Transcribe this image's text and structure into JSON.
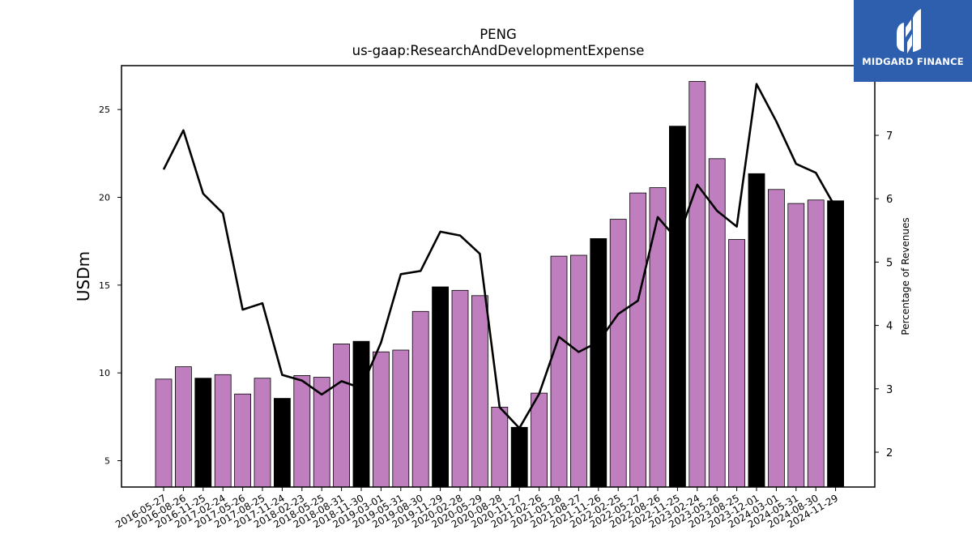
{
  "chart_data": {
    "type": "bar",
    "title": "PENG",
    "subtitle": "us-gaap:ResearchAndDevelopmentExpense",
    "ylabel": "USDm",
    "y2label": "Percentage of Revenues",
    "ylim": [
      3.5,
      27.5
    ],
    "y2lim": [
      1.45,
      8.1
    ],
    "yticks": [
      5,
      10,
      15,
      20,
      25
    ],
    "y2ticks": [
      2,
      3,
      4,
      5,
      6,
      7
    ],
    "categories": [
      "2016-05-27",
      "2016-08-26",
      "2016-11-25",
      "2017-02-24",
      "2017-05-26",
      "2017-08-25",
      "2017-11-24",
      "2018-02-23",
      "2018-05-25",
      "2018-08-31",
      "2018-11-30",
      "2019-03-01",
      "2019-05-31",
      "2019-08-30",
      "2019-11-29",
      "2020-02-28",
      "2020-05-29",
      "2020-08-28",
      "2020-11-27",
      "2021-02-26",
      "2021-05-28",
      "2021-08-27",
      "2021-11-26",
      "2022-02-25",
      "2022-05-27",
      "2022-08-26",
      "2022-11-25",
      "2023-02-24",
      "2023-05-26",
      "2023-08-25",
      "2023-12-01",
      "2024-03-01",
      "2024-05-31",
      "2024-08-30",
      "2024-11-29"
    ],
    "series": [
      {
        "type": "bar",
        "values": [
          9.65,
          10.35,
          9.7,
          9.9,
          8.8,
          9.7,
          8.55,
          9.85,
          9.75,
          11.65,
          11.8,
          11.2,
          11.3,
          13.5,
          14.9,
          14.7,
          14.4,
          8.05,
          6.9,
          8.85,
          16.65,
          16.7,
          17.65,
          18.75,
          20.25,
          20.55,
          24.05,
          26.6,
          22.2,
          17.6,
          21.35,
          20.45,
          19.65,
          19.85,
          19.8
        ],
        "highlight": [
          false,
          false,
          true,
          false,
          false,
          false,
          true,
          false,
          false,
          false,
          true,
          false,
          false,
          false,
          true,
          false,
          false,
          false,
          true,
          false,
          false,
          false,
          true,
          false,
          false,
          false,
          true,
          false,
          false,
          false,
          true,
          false,
          false,
          false,
          true
        ],
        "color": "#bf7fbf",
        "highlight_color": "#000000"
      },
      {
        "type": "line",
        "axis": "right",
        "values": [
          6.46,
          7.08,
          6.08,
          5.77,
          4.25,
          4.35,
          3.22,
          3.13,
          2.91,
          3.12,
          3.01,
          3.73,
          4.81,
          4.86,
          5.48,
          5.42,
          5.13,
          2.71,
          2.38,
          2.92,
          3.82,
          3.58,
          3.74,
          4.18,
          4.39,
          5.71,
          5.35,
          6.22,
          5.81,
          5.56,
          7.81,
          7.22,
          6.55,
          6.41,
          5.86
        ],
        "color": "#000000"
      }
    ],
    "grid": false,
    "legend": "none"
  },
  "brand": {
    "name": "MIDGARD FINANCE",
    "color": "#2d5fae",
    "icon": "midgard-logo-icon"
  }
}
